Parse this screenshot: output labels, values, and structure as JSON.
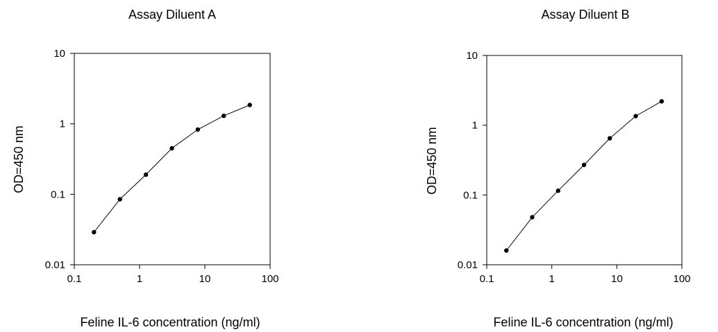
{
  "chart_data": [
    {
      "type": "line",
      "title": "Assay Diluent A",
      "xlabel": "Feline IL-6 concentration (ng/ml)",
      "ylabel": "OD=450 nm",
      "xscale": "log",
      "yscale": "log",
      "xlim": [
        0.1,
        100
      ],
      "ylim": [
        0.01,
        10
      ],
      "xticks": [
        "0.1",
        "1",
        "10",
        "100"
      ],
      "yticks": [
        "0.01",
        "0.1",
        "1",
        "10"
      ],
      "grid": false,
      "legend": "none",
      "series": [
        {
          "x": [
            0.2,
            0.5,
            1.25,
            3.13,
            7.8,
            19.5,
            48.8
          ],
          "y": [
            0.029,
            0.085,
            0.19,
            0.45,
            0.83,
            1.3,
            1.85
          ]
        }
      ]
    },
    {
      "type": "line",
      "title": "Assay Diluent B",
      "xlabel": "Feline IL-6 concentration (ng/ml)",
      "ylabel": "OD=450 nm",
      "xscale": "log",
      "yscale": "log",
      "xlim": [
        0.1,
        100
      ],
      "ylim": [
        0.01,
        10
      ],
      "xticks": [
        "0.1",
        "1",
        "10",
        "100"
      ],
      "yticks": [
        "0.01",
        "0.1",
        "1",
        "10"
      ],
      "grid": false,
      "legend": "none",
      "series": [
        {
          "x": [
            0.2,
            0.5,
            1.25,
            3.13,
            7.8,
            19.5,
            48.8
          ],
          "y": [
            0.016,
            0.048,
            0.115,
            0.27,
            0.65,
            1.35,
            2.2
          ]
        }
      ]
    }
  ]
}
